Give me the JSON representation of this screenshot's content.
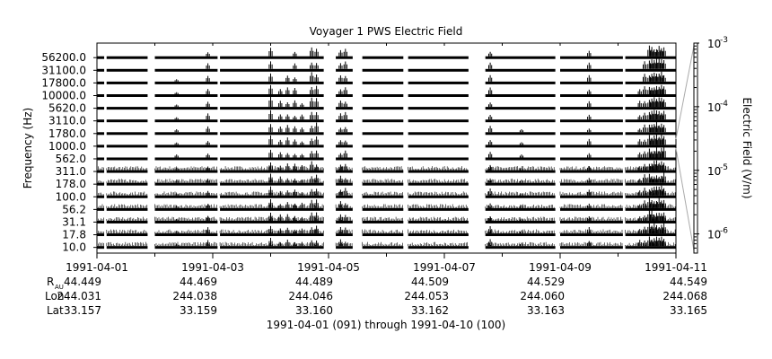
{
  "chart_data": {
    "type": "line",
    "title": "Voyager 1 PWS Electric Field",
    "ylabel": "Frequency (Hz)",
    "xlabel": "1991-04-01 (091) through 1991-04-10 (100)",
    "right_axis_label": "Electric Field (V/m)",
    "x_range": [
      "1991-04-01",
      "1991-04-11"
    ],
    "frequency_channels": [
      "56200.0",
      "31100.0",
      "17800.0",
      "10000.0",
      "5620.0",
      "3110.0",
      "1780.0",
      "1000.0",
      "562.0",
      "311.0",
      "178.0",
      "100.0",
      "56.2",
      "31.1",
      "17.8",
      "10.0"
    ],
    "x_ticks": [
      "1991-04-01",
      "1991-04-03",
      "1991-04-05",
      "1991-04-07",
      "1991-04-09",
      "1991-04-11"
    ],
    "colorbar_ticks": [
      "-3",
      "-4",
      "-5",
      "-6"
    ],
    "colorbar_base": "10",
    "colorbar_range": [
      5e-07,
      0.001
    ],
    "colorbar_scale": "log",
    "data_gaps": [
      [
        "1991-04-01 03:00",
        "1991-04-01 04:00"
      ],
      [
        "1991-04-01 21:00",
        "1991-04-02 00:00"
      ],
      [
        "1991-04-03 02:00",
        "1991-04-03 03:00"
      ],
      [
        "1991-04-04 22:00",
        "1991-04-05 03:00"
      ],
      [
        "1991-04-05 10:00",
        "1991-04-05 14:00"
      ],
      [
        "1991-04-06 07:00",
        "1991-04-06 09:00"
      ],
      [
        "1991-04-07 10:00",
        "1991-04-07 17:00"
      ],
      [
        "1991-04-08 22:00",
        "1991-04-09 00:00"
      ],
      [
        "1991-04-10 02:00",
        "1991-04-10 03:00"
      ]
    ],
    "bursts": [
      {
        "time": "1991-04-02 22:00",
        "top_channel": 0,
        "strength": 0.6
      },
      {
        "time": "1991-04-02 09:00",
        "top_channel": 2,
        "strength": 0.3
      },
      {
        "time": "1991-04-04 00:00",
        "top_channel": 0,
        "strength": 1.0
      },
      {
        "time": "1991-04-04 04:00",
        "top_channel": 3,
        "strength": 0.6
      },
      {
        "time": "1991-04-04 07:00",
        "top_channel": 2,
        "strength": 0.7
      },
      {
        "time": "1991-04-04 10:00",
        "top_channel": 0,
        "strength": 0.6
      },
      {
        "time": "1991-04-04 13:00",
        "top_channel": 4,
        "strength": 0.5
      },
      {
        "time": "1991-04-04 17:00",
        "top_channel": 0,
        "strength": 0.9
      },
      {
        "time": "1991-04-04 19:00",
        "top_channel": 0,
        "strength": 0.9
      },
      {
        "time": "1991-04-05 05:00",
        "top_channel": 0,
        "strength": 0.7
      },
      {
        "time": "1991-04-05 07:00",
        "top_channel": 0,
        "strength": 0.7
      },
      {
        "time": "1991-04-07 19:00",
        "top_channel": 0,
        "strength": 0.7
      },
      {
        "time": "1991-04-08 08:00",
        "top_channel": 6,
        "strength": 0.3
      },
      {
        "time": "1991-04-09 12:00",
        "top_channel": 0,
        "strength": 0.6
      },
      {
        "time": "1991-04-10 13:00",
        "top_channel": 0,
        "strength": 1.0
      },
      {
        "time": "1991-04-10 14:00",
        "top_channel": 0,
        "strength": 1.0
      },
      {
        "time": "1991-04-10 15:00",
        "top_channel": 0,
        "strength": 1.0
      },
      {
        "time": "1991-04-10 16:00",
        "top_channel": 0,
        "strength": 1.0
      },
      {
        "time": "1991-04-10 17:00",
        "top_channel": 0,
        "strength": 1.0
      },
      {
        "time": "1991-04-10 18:00",
        "top_channel": 0,
        "strength": 1.0
      },
      {
        "time": "1991-04-10 19:00",
        "top_channel": 0,
        "strength": 1.0
      },
      {
        "time": "1991-04-10 11:00",
        "top_channel": 1,
        "strength": 0.8
      },
      {
        "time": "1991-04-10 09:00",
        "top_channel": 3,
        "strength": 0.6
      }
    ],
    "ephemeris": {
      "row_labels": {
        "r": "R",
        "r_sub": "AU",
        "lon": "Lon",
        "lat": "Lat"
      },
      "columns": [
        {
          "date": "1991-04-01",
          "r": "44.449",
          "lon": "244.031",
          "lat": "33.157"
        },
        {
          "date": "1991-04-03",
          "r": "44.469",
          "lon": "244.038",
          "lat": "33.159"
        },
        {
          "date": "1991-04-05",
          "r": "44.489",
          "lon": "244.046",
          "lat": "33.160"
        },
        {
          "date": "1991-04-07",
          "r": "44.509",
          "lon": "244.053",
          "lat": "33.162"
        },
        {
          "date": "1991-04-09",
          "r": "44.529",
          "lon": "244.060",
          "lat": "33.163"
        },
        {
          "date": "1991-04-11",
          "r": "44.549",
          "lon": "244.068",
          "lat": "33.165"
        }
      ]
    }
  }
}
